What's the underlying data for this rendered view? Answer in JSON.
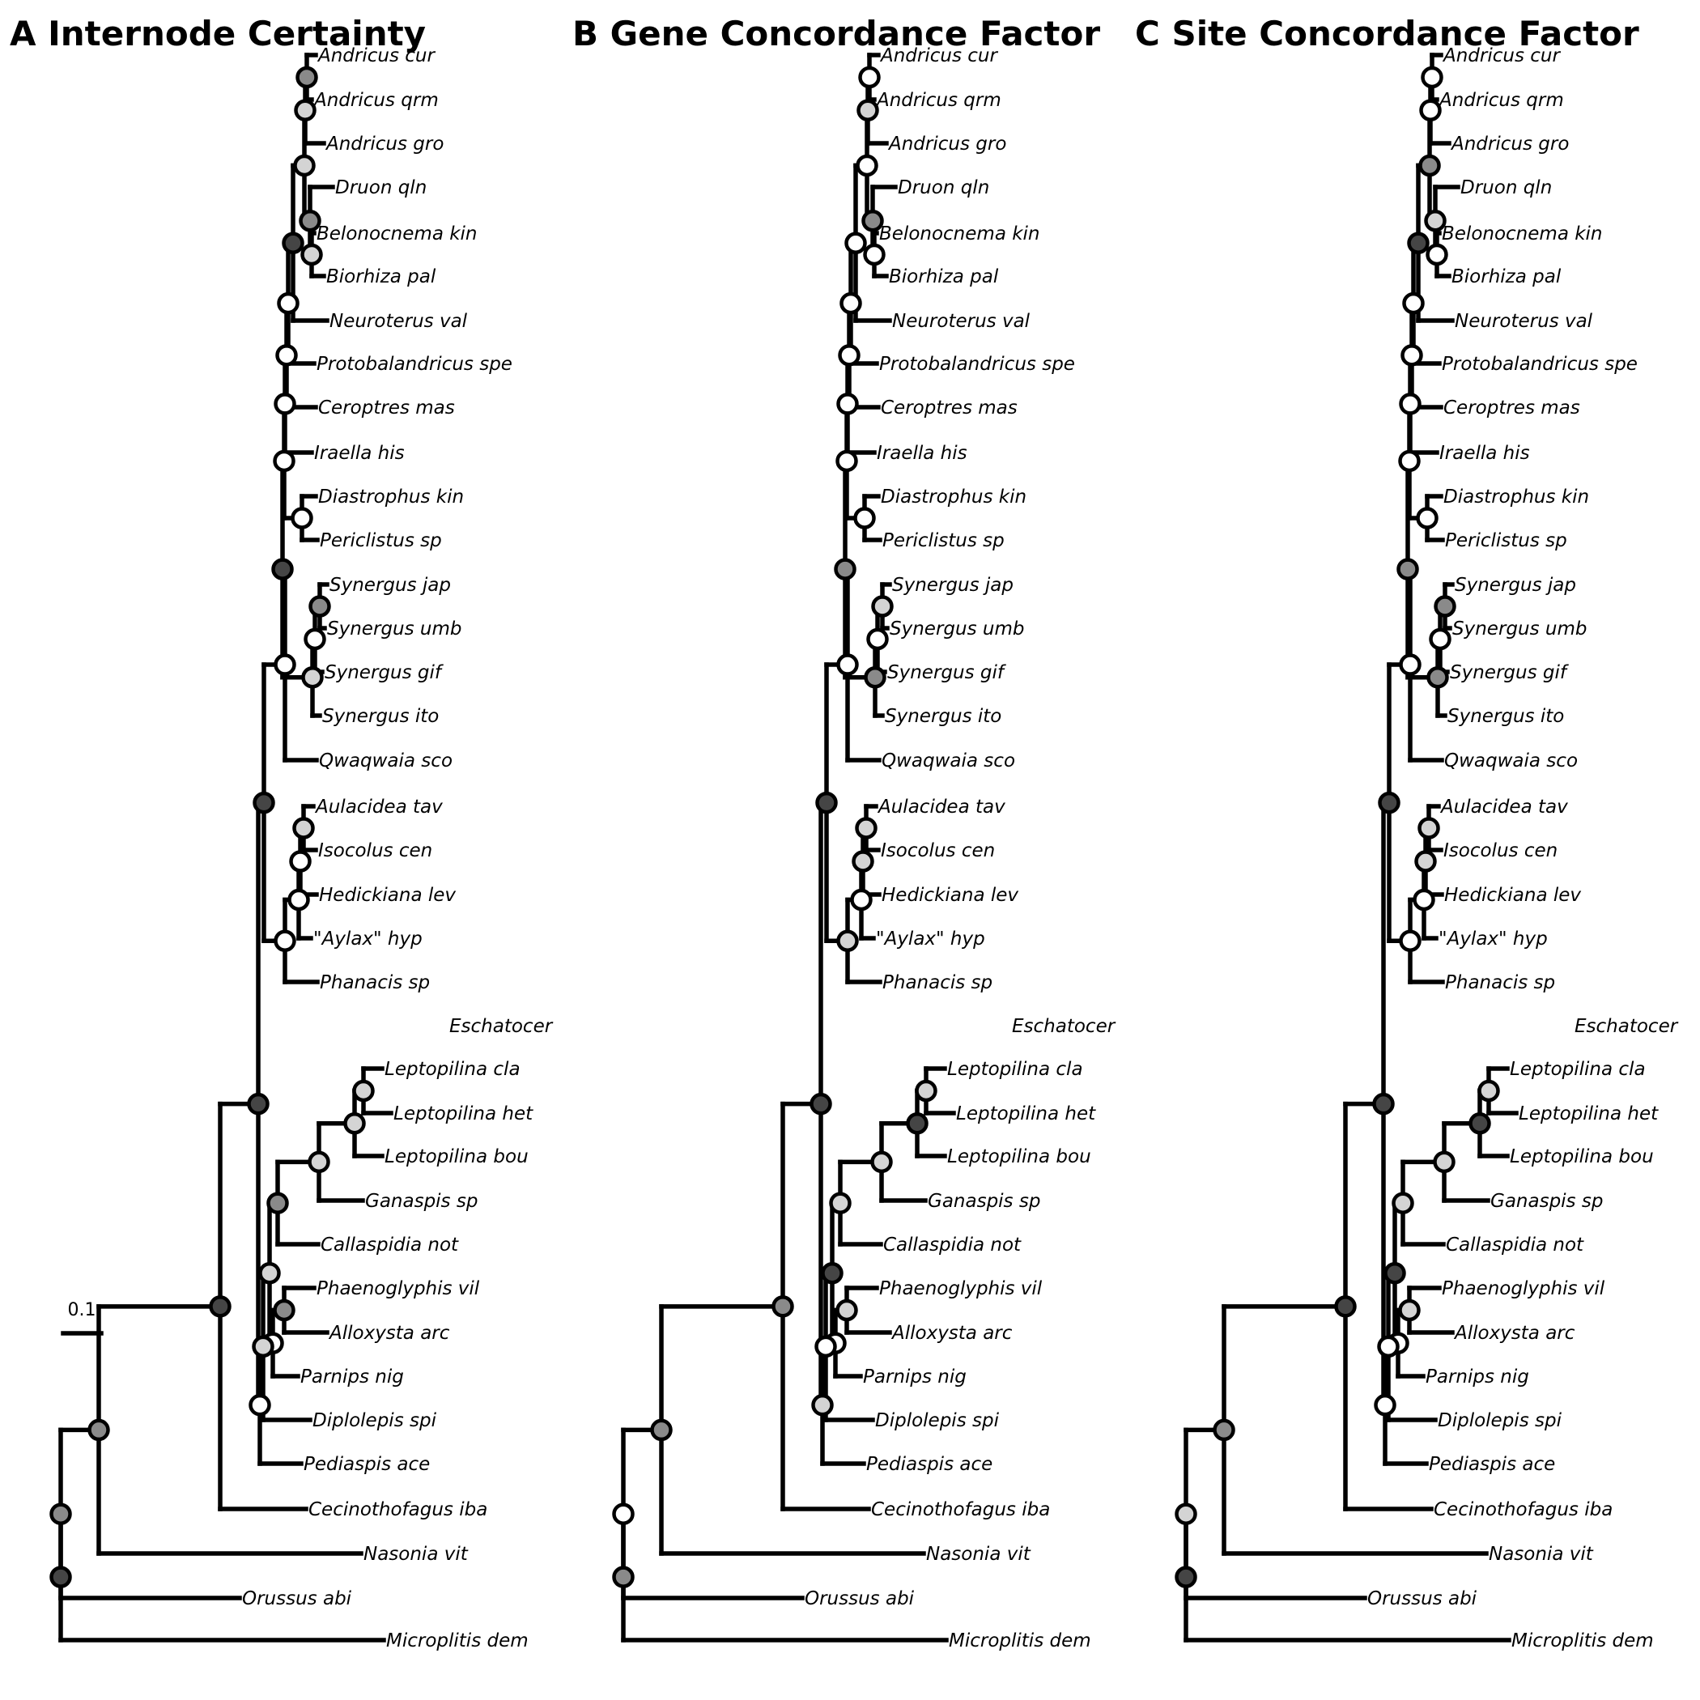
{
  "panels": [
    {
      "letter": "A",
      "title": "Internode Certainty"
    },
    {
      "letter": "B",
      "title": "Gene Concordance Factor"
    },
    {
      "letter": "C",
      "title": "Site Concordance Factor"
    }
  ],
  "scale_bar": {
    "label": "0.1",
    "value": 0.1
  },
  "taxa": [
    "Andricus cur",
    "Andricus qrm",
    "Andricus gro",
    "Druon qln",
    "Belonocnema kin",
    "Biorhiza pal",
    "Neuroterus val",
    "Protobalandricus spe",
    "Ceroptres mas",
    "Iraella his",
    "Diastrophus kin",
    "Periclistus sp",
    "Synergus jap",
    "Synergus umb",
    "Synergus gif",
    "Synergus ito",
    "Qwaqwaia sco",
    "Aulacidea tav",
    "Isocolus cen",
    "Hedickiana lev",
    "\"Aylax\" hyp",
    "Phanacis sp",
    "Eschatocer",
    "Leptopilina cla",
    "Leptopilina het",
    "Leptopilina bou",
    "Ganaspis sp",
    "Callaspidia not",
    "Phaenoglyphis vil",
    "Alloxysta arc",
    "Parnips nig",
    "Diplolepis spi",
    "Pediaspis ace",
    "Cecinothofagus iba",
    "Nasonia vit",
    "Orussus abi",
    "Microplitis dem"
  ],
  "support_shades": {
    "white": "#ffffff",
    "light": "#d4d4d4",
    "medium": "#8a8a8a",
    "dark": "#454545"
  },
  "node_support": {
    "A": [
      "medium",
      "light",
      "light",
      "medium",
      "light",
      "dark",
      "white",
      "white",
      "white",
      "white",
      "white",
      "medium",
      "white",
      "light",
      "dark",
      "white",
      "light",
      "white",
      "white",
      "white",
      "dark",
      "light",
      "light",
      "light",
      "medium",
      "medium",
      "white",
      "light",
      "light",
      "white",
      "dark",
      "dark",
      "medium",
      "medium",
      "dark"
    ],
    "B": [
      "white",
      "light",
      "white",
      "medium",
      "white",
      "white",
      "white",
      "white",
      "white",
      "white",
      "white",
      "light",
      "white",
      "medium",
      "medium",
      "white",
      "light",
      "light",
      "white",
      "light",
      "dark",
      "light",
      "dark",
      "light",
      "light",
      "light",
      "white",
      "dark",
      "white",
      "light",
      "dark",
      "medium",
      "medium",
      "white",
      "medium"
    ],
    "C": [
      "white",
      "white",
      "white",
      "light",
      "medium",
      "dark",
      "white",
      "white",
      "white",
      "white",
      "white",
      "medium",
      "white",
      "medium",
      "medium",
      "white",
      "light",
      "light",
      "white",
      "white",
      "dark",
      "light",
      "dark",
      "light",
      "light",
      "light",
      "white",
      "dark",
      "white",
      "white",
      "dark",
      "dark",
      "medium",
      "light",
      "dark"
    ]
  }
}
